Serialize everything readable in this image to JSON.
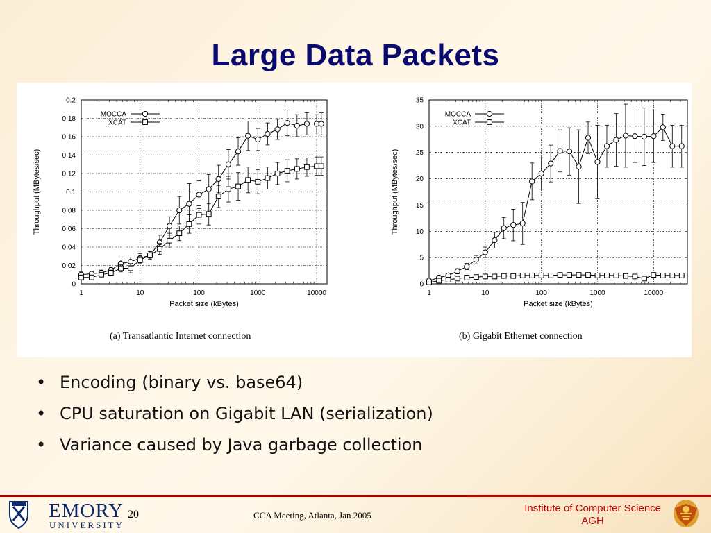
{
  "slide": {
    "title": "Large Data Packets",
    "bullets": [
      "Encoding (binary vs. base64)",
      "CPU saturation on Gigabit LAN (serialization)",
      "Variance caused by Java garbage collection"
    ],
    "footer": {
      "page_number": "20",
      "meeting": "CCA Meeting, Atlanta, Jan 2005",
      "university_name": "EMORY",
      "university_sub": "UNIVERSITY",
      "institute_line1": "Institute of Computer Science",
      "institute_line2": "AGH"
    },
    "colors": {
      "title": "#0a0a6e",
      "footer_rule": "#bb0000",
      "institute": "#c00000"
    }
  },
  "chart_data": [
    {
      "type": "line",
      "caption": "(a) Transatlantic Internet connection",
      "xlabel": "Packet size (kBytes)",
      "ylabel": "Throughput (MBytes/sec)",
      "xscale": "log",
      "xlim": [
        1,
        15000
      ],
      "ylim": [
        0,
        0.2
      ],
      "xticks": [
        1,
        10,
        100,
        1000,
        10000
      ],
      "xtick_labels": [
        "1",
        "10",
        "100",
        "1000",
        "10000"
      ],
      "yticks": [
        0,
        0.02,
        0.04,
        0.06,
        0.08,
        0.1,
        0.12,
        0.14,
        0.16,
        0.18,
        0.2
      ],
      "ytick_labels": [
        "0",
        "0.02",
        "0.04",
        "0.06",
        "0.08",
        "0.1",
        "0.12",
        "0.14",
        "0.16",
        "0.18",
        "0.2"
      ],
      "grid": true,
      "legend_position": "top-left",
      "series": [
        {
          "name": "MOCCA",
          "marker": "circle",
          "x": [
            1,
            1.5,
            2.2,
            3.2,
            4.7,
            6.9,
            10,
            14.7,
            21.5,
            31.6,
            46.4,
            68.1,
            100,
            147,
            215,
            316,
            464,
            681,
            1000,
            1468,
            2154,
            3162,
            4642,
            6813,
            10000,
            12000
          ],
          "y": [
            0.01,
            0.011,
            0.012,
            0.015,
            0.022,
            0.024,
            0.028,
            0.031,
            0.045,
            0.063,
            0.08,
            0.087,
            0.097,
            0.103,
            0.114,
            0.13,
            0.144,
            0.161,
            0.157,
            0.163,
            0.168,
            0.175,
            0.172,
            0.174,
            0.174,
            0.174
          ],
          "err": [
            0.003,
            0.003,
            0.003,
            0.003,
            0.004,
            0.005,
            0.005,
            0.005,
            0.008,
            0.01,
            0.015,
            0.022,
            0.015,
            0.016,
            0.015,
            0.016,
            0.015,
            0.016,
            0.012,
            0.012,
            0.011,
            0.014,
            0.012,
            0.012,
            0.01,
            0.012
          ]
        },
        {
          "name": "XCAT",
          "marker": "square",
          "x": [
            1,
            1.5,
            2.2,
            3.2,
            4.7,
            6.9,
            10,
            14.7,
            21.5,
            31.6,
            46.4,
            68.1,
            100,
            147,
            215,
            316,
            464,
            681,
            1000,
            1468,
            2154,
            3162,
            4642,
            6813,
            10000,
            12000
          ],
          "y": [
            0.007,
            0.007,
            0.01,
            0.012,
            0.017,
            0.017,
            0.026,
            0.031,
            0.038,
            0.047,
            0.055,
            0.065,
            0.075,
            0.076,
            0.095,
            0.103,
            0.106,
            0.113,
            0.111,
            0.115,
            0.12,
            0.123,
            0.125,
            0.127,
            0.128,
            0.128
          ],
          "err": [
            0.002,
            0.002,
            0.002,
            0.003,
            0.004,
            0.005,
            0.004,
            0.004,
            0.006,
            0.008,
            0.008,
            0.01,
            0.01,
            0.012,
            0.012,
            0.014,
            0.015,
            0.014,
            0.013,
            0.012,
            0.012,
            0.012,
            0.011,
            0.01,
            0.01,
            0.01
          ]
        }
      ]
    },
    {
      "type": "line",
      "caption": "(b) Gigabit Ethernet connection",
      "xlabel": "Packet size (kBytes)",
      "ylabel": "Throughput (MBytes/sec)",
      "xscale": "log",
      "xlim": [
        1,
        40000
      ],
      "ylim": [
        0,
        35
      ],
      "xticks": [
        1,
        10,
        100,
        1000,
        10000
      ],
      "xtick_labels": [
        "1",
        "10",
        "100",
        "1000",
        "10000"
      ],
      "yticks": [
        0,
        5,
        10,
        15,
        20,
        25,
        30,
        35
      ],
      "ytick_labels": [
        "0",
        "5",
        "10",
        "15",
        "20",
        "25",
        "30",
        "35"
      ],
      "grid": true,
      "legend_position": "top-left",
      "series": [
        {
          "name": "MOCCA",
          "marker": "circle",
          "x": [
            1,
            1.5,
            2.2,
            3.2,
            4.7,
            6.9,
            10,
            14.7,
            21.5,
            31.6,
            46.4,
            68.1,
            100,
            147,
            215,
            316,
            464,
            681,
            1000,
            1468,
            2154,
            3162,
            4642,
            6813,
            10000,
            14678,
            21544,
            31623
          ],
          "y": [
            0.6,
            1.2,
            1.6,
            2.4,
            3.3,
            4.6,
            6,
            8.3,
            10.6,
            11.2,
            11.5,
            19.5,
            21,
            22.9,
            25.3,
            25.2,
            22.3,
            27.8,
            23.2,
            26.2,
            27.4,
            28.2,
            28.1,
            28,
            28.1,
            29.8,
            26.2,
            26.2
          ],
          "err": [
            0.3,
            0.3,
            0.4,
            0.5,
            0.6,
            0.8,
            1,
            1.5,
            2,
            3,
            4,
            3.5,
            3,
            3.5,
            4,
            4.5,
            7,
            3,
            7,
            4,
            5,
            6,
            5,
            5.5,
            5,
            2.5,
            4,
            4
          ]
        },
        {
          "name": "XCAT",
          "marker": "square",
          "x": [
            1,
            1.5,
            2.2,
            3.2,
            4.7,
            6.9,
            10,
            14.7,
            21.5,
            31.6,
            46.4,
            68.1,
            100,
            147,
            215,
            316,
            464,
            681,
            1000,
            1468,
            2154,
            3162,
            4642,
            6813,
            10000,
            14678,
            21544,
            31623
          ],
          "y": [
            0.3,
            0.6,
            0.8,
            1,
            1.2,
            1.3,
            1.4,
            1.4,
            1.5,
            1.5,
            1.6,
            1.6,
            1.6,
            1.6,
            1.7,
            1.7,
            1.7,
            1.7,
            1.6,
            1.6,
            1.6,
            1.5,
            1.4,
            1.0,
            1.7,
            1.6,
            1.6,
            1.6
          ],
          "err": [
            0.1,
            0.2,
            0.2,
            0.2,
            0.2,
            0.2,
            0.2,
            0.2,
            0.2,
            0.2,
            0.2,
            0.2,
            0.2,
            0.2,
            0.2,
            0.2,
            0.2,
            0.2,
            0.2,
            0.2,
            0.2,
            0.2,
            0.2,
            0.2,
            0.2,
            0.2,
            0.2,
            0.2
          ]
        }
      ]
    }
  ]
}
